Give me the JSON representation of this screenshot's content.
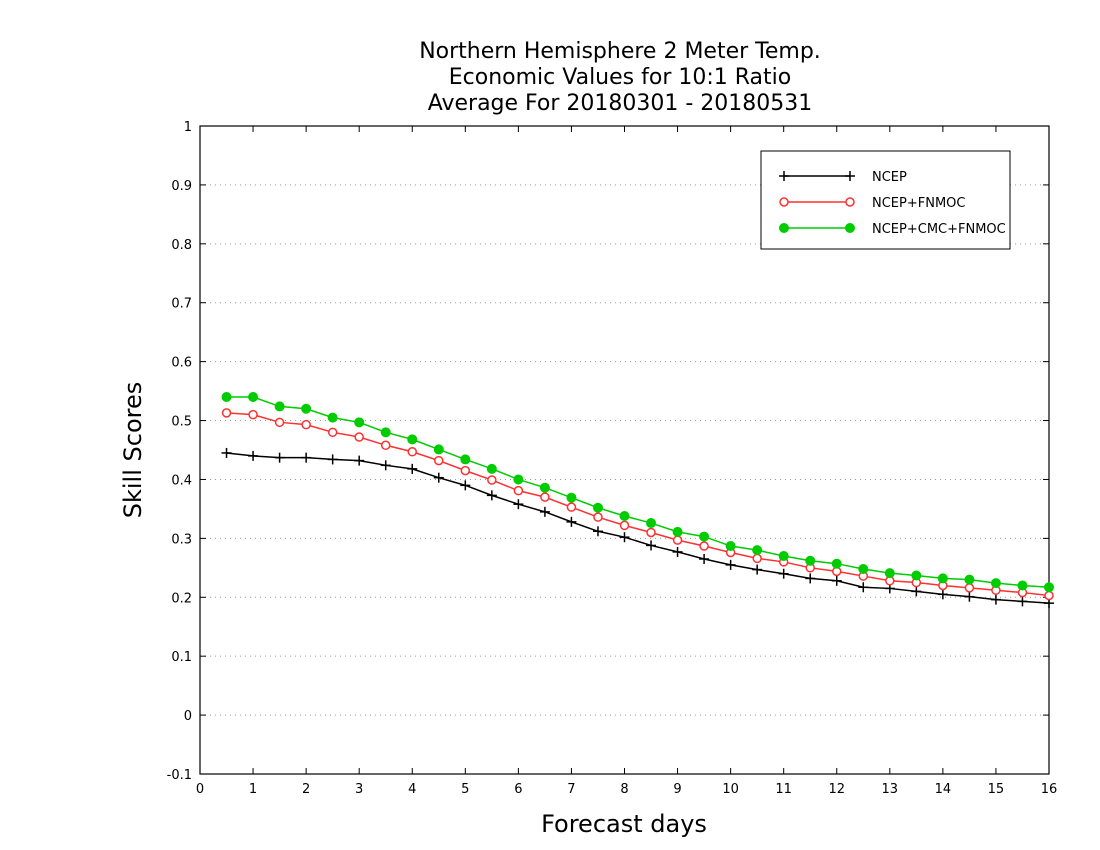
{
  "chart_data": {
    "type": "line",
    "title": [
      "Northern Hemisphere 2 Meter Temp.",
      "Economic Values for 10:1 Ratio",
      "Average For 20180301 - 20180531"
    ],
    "xlabel": "Forecast days",
    "ylabel": "Skill Scores",
    "xlim": [
      0,
      16
    ],
    "ylim": [
      -0.1,
      1
    ],
    "xticks": [
      "0",
      "1",
      "2",
      "3",
      "4",
      "5",
      "6",
      "7",
      "8",
      "9",
      "10",
      "11",
      "12",
      "13",
      "14",
      "15",
      "16"
    ],
    "yticks": [
      "-0.1",
      "0",
      "0.1",
      "0.2",
      "0.3",
      "0.4",
      "0.5",
      "0.6",
      "0.7",
      "0.8",
      "0.9",
      "1"
    ],
    "grid": "horizontal-dotted",
    "legend_position": "top-right",
    "x": [
      0.5,
      1,
      1.5,
      2,
      2.5,
      3,
      3.5,
      4,
      4.5,
      5,
      5.5,
      6,
      6.5,
      7,
      7.5,
      8,
      8.5,
      9,
      9.5,
      10,
      10.5,
      11,
      11.5,
      12,
      12.5,
      13,
      13.5,
      14,
      14.5,
      15,
      15.5,
      16
    ],
    "series": [
      {
        "name": "NCEP",
        "color": "#000000",
        "marker": "plus",
        "values": [
          0.445,
          0.44,
          0.437,
          0.437,
          0.434,
          0.432,
          0.424,
          0.418,
          0.403,
          0.39,
          0.373,
          0.358,
          0.345,
          0.328,
          0.312,
          0.302,
          0.288,
          0.277,
          0.265,
          0.255,
          0.247,
          0.24,
          0.232,
          0.228,
          0.217,
          0.215,
          0.21,
          0.205,
          0.201,
          0.196,
          0.193,
          0.19
        ]
      },
      {
        "name": "NCEP+FNMOC",
        "color": "#ff3030",
        "marker": "open-circle",
        "values": [
          0.513,
          0.51,
          0.497,
          0.493,
          0.48,
          0.472,
          0.458,
          0.447,
          0.432,
          0.415,
          0.399,
          0.381,
          0.37,
          0.353,
          0.336,
          0.322,
          0.31,
          0.297,
          0.287,
          0.276,
          0.266,
          0.26,
          0.25,
          0.244,
          0.236,
          0.228,
          0.225,
          0.22,
          0.216,
          0.212,
          0.208,
          0.203
        ]
      },
      {
        "name": "NCEP+CMC+FNMOC",
        "color": "#00cc00",
        "marker": "filled-circle",
        "values": [
          0.54,
          0.54,
          0.524,
          0.52,
          0.505,
          0.497,
          0.48,
          0.468,
          0.451,
          0.434,
          0.418,
          0.4,
          0.386,
          0.369,
          0.352,
          0.338,
          0.326,
          0.311,
          0.303,
          0.287,
          0.28,
          0.27,
          0.262,
          0.257,
          0.248,
          0.241,
          0.237,
          0.232,
          0.23,
          0.224,
          0.22,
          0.217
        ]
      }
    ]
  }
}
